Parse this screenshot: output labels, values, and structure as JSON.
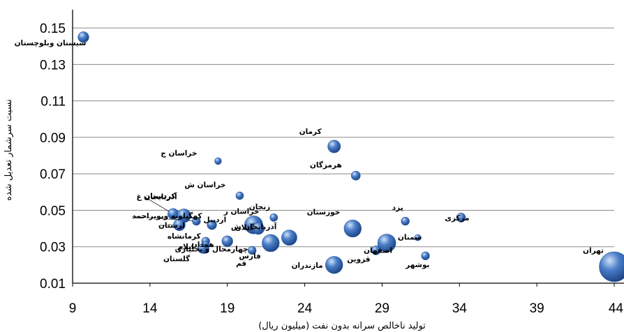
{
  "chart_data": {
    "type": "scatter",
    "xlabel": "تولید ناخالص سرانه بدون نفت (میلیون ریال)",
    "ylabel": "نسبت سرشمار تعدیل شده",
    "xlim": [
      9,
      44
    ],
    "ylim": [
      0.01,
      0.16
    ],
    "x_ticks": [
      "9",
      "14",
      "19",
      "24",
      "29",
      "34",
      "39",
      "44"
    ],
    "y_ticks": [
      "0.01",
      "0.03",
      "0.05",
      "0.07",
      "0.09",
      "0.11",
      "0.13",
      "0.15"
    ],
    "grid": "horizontal",
    "bubble_color": "#4a7ec8",
    "points": [
      {
        "name": "سیستان وبلوچستان",
        "x": 9.7,
        "y": 0.145,
        "size": 1.2
      },
      {
        "name": "کرمان",
        "x": 25.9,
        "y": 0.085,
        "size": 1.4
      },
      {
        "name": "خراسان ج",
        "x": 18.4,
        "y": 0.077,
        "size": 0.75
      },
      {
        "name": "هرمزگان",
        "x": 27.3,
        "y": 0.069,
        "size": 1.0
      },
      {
        "name": "خراسان ش",
        "x": 19.8,
        "y": 0.058,
        "size": 0.85
      },
      {
        "name": "کردستان",
        "x": 15.5,
        "y": 0.048,
        "size": 1.2
      },
      {
        "name": "آذربایجان غ",
        "x": 16.2,
        "y": 0.047,
        "size": 1.5
      },
      {
        "name": "کهگیلویه وبویراحمد",
        "x": 17.0,
        "y": 0.044,
        "size": 0.9
      },
      {
        "name": "لرستان",
        "x": 15.9,
        "y": 0.042,
        "size": 1.3
      },
      {
        "name": "اردبیل",
        "x": 18.0,
        "y": 0.042,
        "size": 1.05
      },
      {
        "name": "خراسان ر",
        "x": 20.7,
        "y": 0.042,
        "size": 2.0
      },
      {
        "name": "زنجان",
        "x": 22.0,
        "y": 0.046,
        "size": 0.85
      },
      {
        "name": "گیلان",
        "x": 21.0,
        "y": 0.04,
        "size": 1.3
      },
      {
        "name": "خوزستان",
        "x": 27.1,
        "y": 0.04,
        "size": 1.9
      },
      {
        "name": "آذربایجان ش",
        "x": 23.0,
        "y": 0.035,
        "size": 1.7
      },
      {
        "name": "کرمانشاه",
        "x": 17.6,
        "y": 0.033,
        "size": 0.9
      },
      {
        "name": "ایلام",
        "x": 17.6,
        "y": 0.031,
        "size": 0.8
      },
      {
        "name": "همدان",
        "x": 19.0,
        "y": 0.033,
        "size": 1.2
      },
      {
        "name": "چهارمحال و بختیاری",
        "x": 17.5,
        "y": 0.029,
        "size": 1.1
      },
      {
        "name": "گلستان",
        "x": 17.4,
        "y": 0.029,
        "size": 1.05
      },
      {
        "name": "فارس",
        "x": 21.8,
        "y": 0.032,
        "size": 1.9
      },
      {
        "name": "قم",
        "x": 20.6,
        "y": 0.028,
        "size": 0.9
      },
      {
        "name": "یزد",
        "x": 30.5,
        "y": 0.044,
        "size": 0.9
      },
      {
        "name": "مرکزی",
        "x": 34.1,
        "y": 0.046,
        "size": 1.0
      },
      {
        "name": "سمنان",
        "x": 31.3,
        "y": 0.035,
        "size": 0.7
      },
      {
        "name": "اصفهان",
        "x": 29.3,
        "y": 0.032,
        "size": 2.0
      },
      {
        "name": "قزوین",
        "x": 28.6,
        "y": 0.028,
        "size": 1.0
      },
      {
        "name": "بوشهر",
        "x": 31.8,
        "y": 0.025,
        "size": 0.9
      },
      {
        "name": "مازندران",
        "x": 25.9,
        "y": 0.02,
        "size": 1.9
      },
      {
        "name": "تهران",
        "x": 44.0,
        "y": 0.019,
        "size": 3.3
      }
    ]
  }
}
